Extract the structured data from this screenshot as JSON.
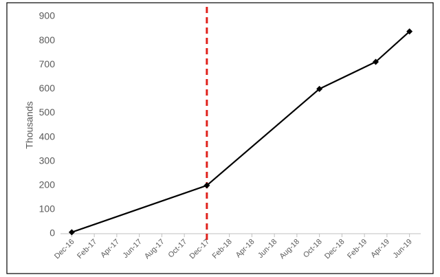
{
  "chart_data": {
    "type": "line",
    "ylabel": "Thousands",
    "x": [
      "2016-12",
      "2017-12",
      "2018-10",
      "2019-03",
      "2019-06"
    ],
    "series": [
      {
        "name": null,
        "color": "#000000",
        "values": [
          6,
          200,
          600,
          712,
          838
        ]
      }
    ],
    "xlim": [
      "2016-11",
      "2019-07"
    ],
    "xticks": [
      {
        "value": "2016-12",
        "label": "Dec-16"
      },
      {
        "value": "2017-02",
        "label": "Feb-17"
      },
      {
        "value": "2017-04",
        "label": "Apr-17"
      },
      {
        "value": "2017-06",
        "label": "Jun-17"
      },
      {
        "value": "2017-08",
        "label": "Aug-17"
      },
      {
        "value": "2017-10",
        "label": "Oct-17"
      },
      {
        "value": "2017-12",
        "label": "Dec-17"
      },
      {
        "value": "2018-02",
        "label": "Feb-18"
      },
      {
        "value": "2018-04",
        "label": "Apr-18"
      },
      {
        "value": "2018-06",
        "label": "Jun-18"
      },
      {
        "value": "2018-08",
        "label": "Aug-18"
      },
      {
        "value": "2018-10",
        "label": "Oct-18"
      },
      {
        "value": "2018-12",
        "label": "Dec-18"
      },
      {
        "value": "2019-02",
        "label": "Feb-19"
      },
      {
        "value": "2019-04",
        "label": "Apr-19"
      },
      {
        "value": "2019-06",
        "label": "Jun-19"
      }
    ],
    "ylim": [
      0,
      900
    ],
    "yticks": [
      0,
      100,
      200,
      300,
      400,
      500,
      600,
      700,
      800,
      900
    ],
    "grid": false,
    "marker": "diamond",
    "vline": {
      "x": "2017-12",
      "color": "#e0201b"
    }
  }
}
